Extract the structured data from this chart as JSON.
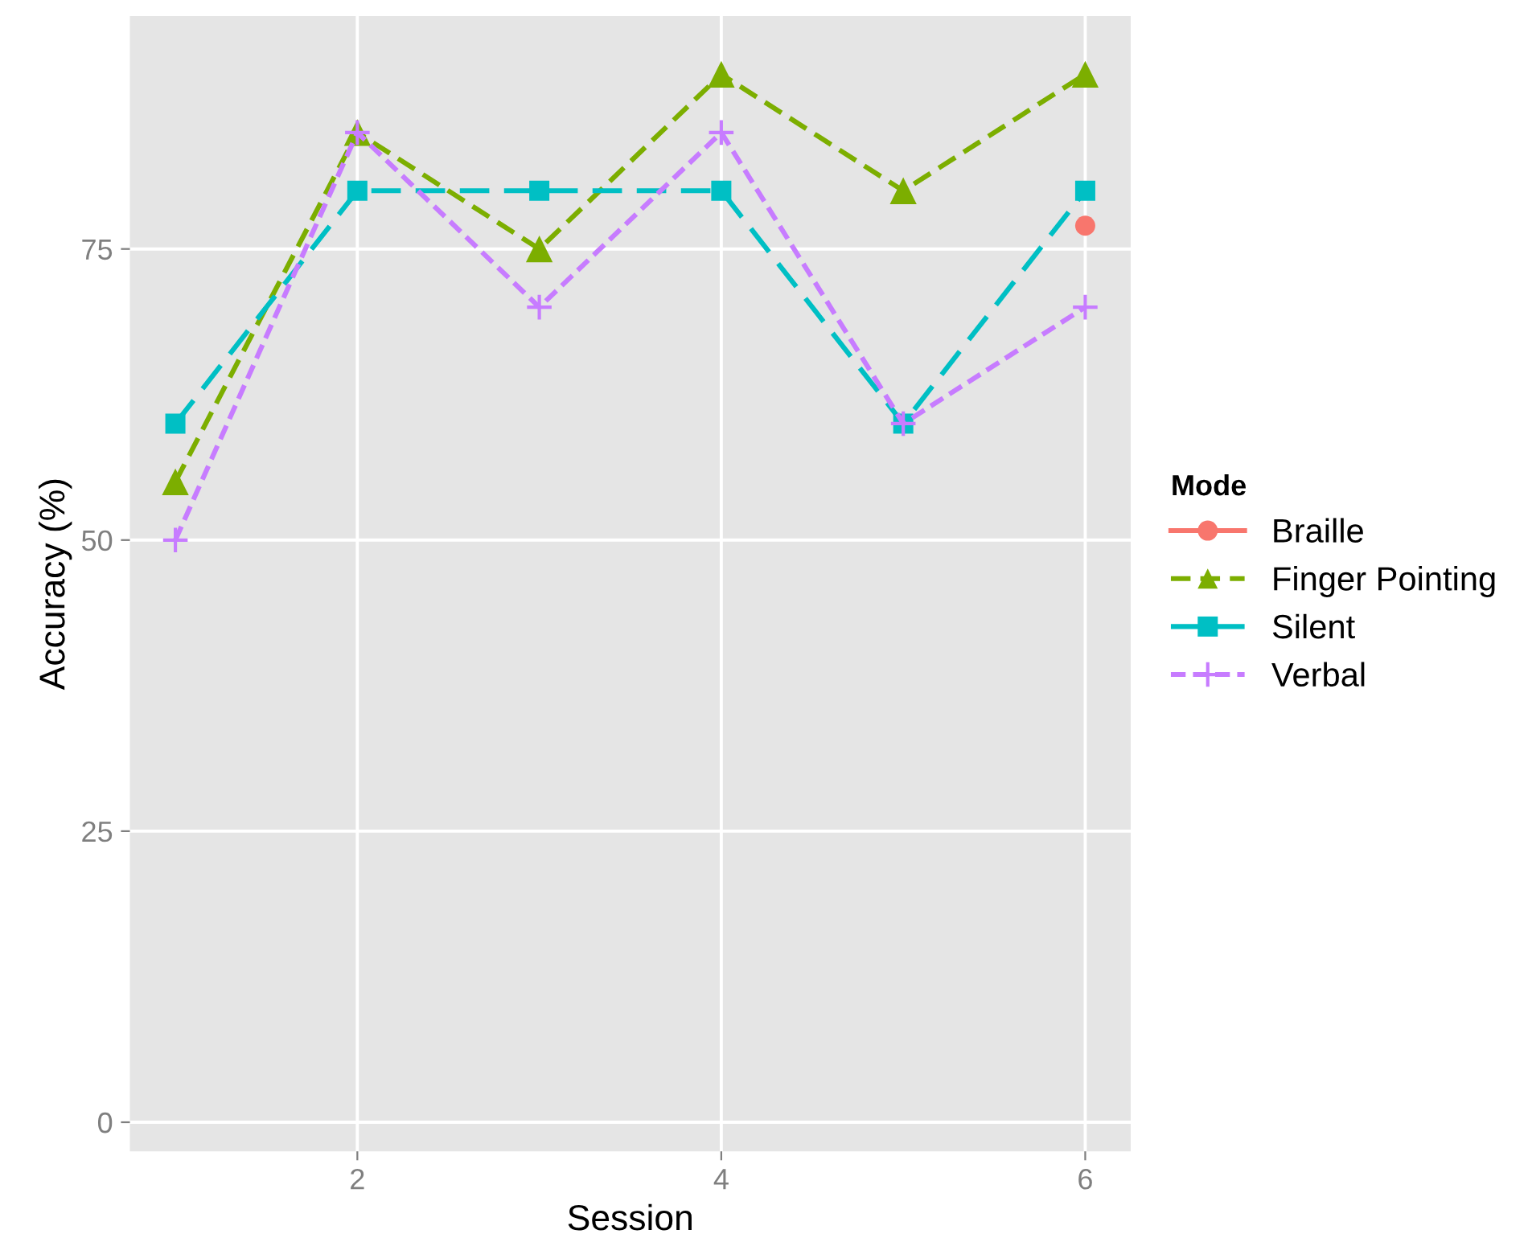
{
  "chart_data": {
    "type": "line",
    "xlabel": "Session",
    "ylabel": "Accuracy (%)",
    "legend_title": "Mode",
    "legend": "right",
    "grid": true,
    "x": [
      1,
      2,
      3,
      4,
      5,
      6
    ],
    "xlim": [
      0.75,
      6.25
    ],
    "xticks": [
      2,
      4,
      6
    ],
    "ylim": [
      -2.5,
      95
    ],
    "yticks": [
      0,
      25,
      50,
      75
    ],
    "series": [
      {
        "name": "Braille",
        "color": "#f8766d",
        "marker": "circle",
        "line_style": "solid",
        "values": [
          null,
          null,
          null,
          null,
          null,
          77
        ]
      },
      {
        "name": "Finger Pointing",
        "color": "#7cae00",
        "marker": "triangle",
        "line_style": "dashed",
        "values": [
          55,
          85,
          75,
          90,
          80,
          90
        ]
      },
      {
        "name": "Silent",
        "color": "#00bfc4",
        "marker": "square",
        "line_style": "dashed",
        "values": [
          60,
          80,
          80,
          80,
          60,
          80
        ]
      },
      {
        "name": "Verbal",
        "color": "#c77cff",
        "marker": "cross",
        "line_style": "dashed",
        "values": [
          50,
          85,
          70,
          85,
          60,
          70
        ]
      }
    ]
  }
}
